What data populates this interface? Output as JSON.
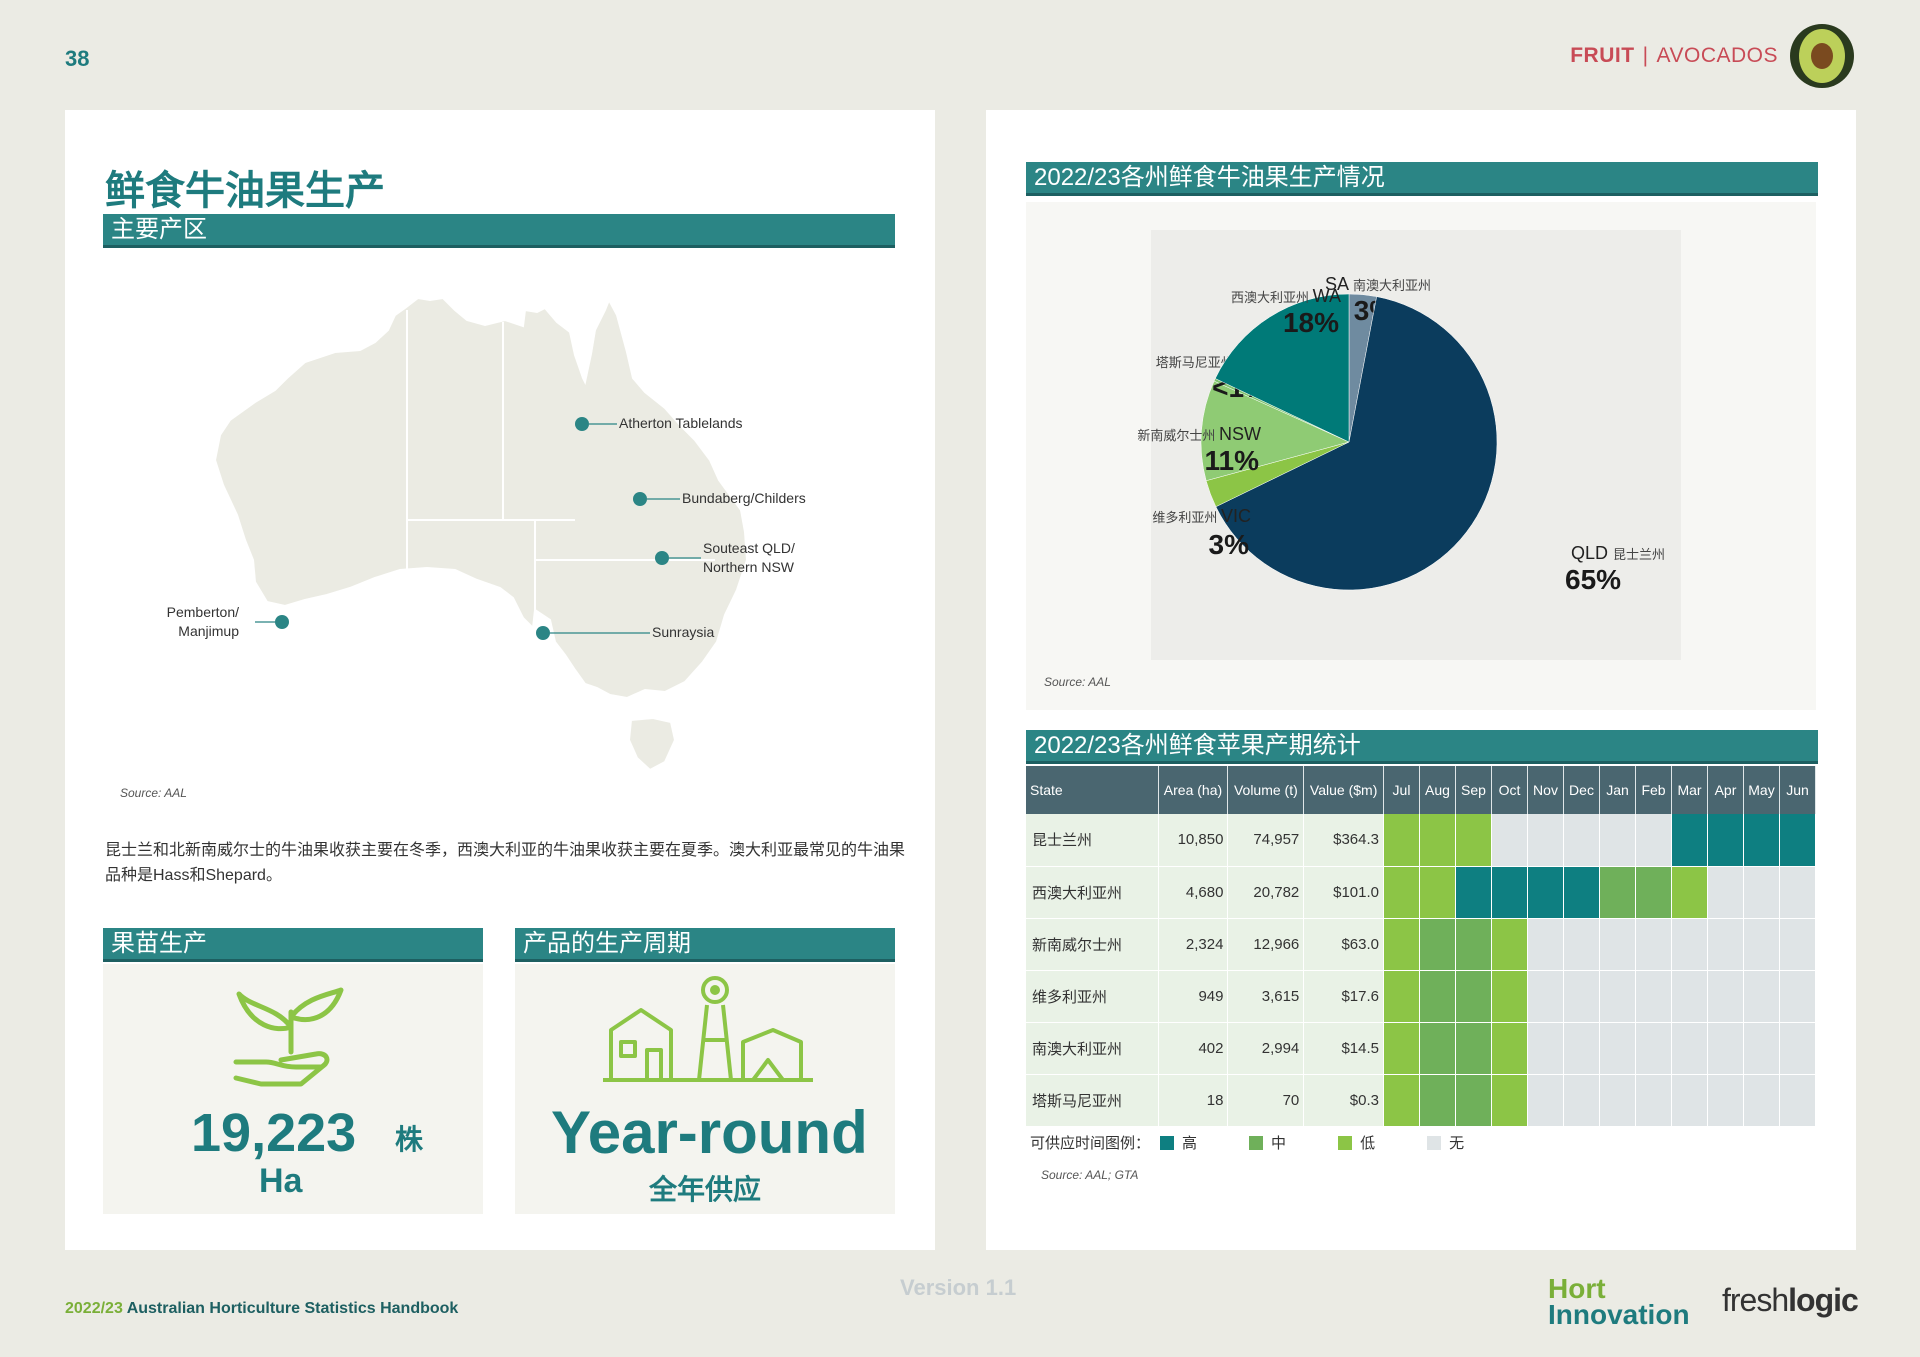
{
  "header": {
    "page_number": "38",
    "category": "FRUIT",
    "separator": "|",
    "subcategory": "AVOCADOS"
  },
  "left": {
    "title": "鲜食牛油果生产",
    "section_bar": "主要产区",
    "map_labels": {
      "atherton": "Atherton Tablelands",
      "bundaberg": "Bundaberg/Childers",
      "seqld_1": "Souteast QLD/",
      "seqld_2": "Northern NSW",
      "pemberton_1": "Pemberton/",
      "pemberton_2": "Manjimup",
      "sunraysia": "Sunraysia"
    },
    "map_source": "Source: AAL",
    "paragraph": "昆士兰和北新南威尔士的牛油果收获主要在冬季，西澳大利亚的牛油果收获主要在夏季。澳大利亚最常见的牛油果品种是Hass和Shepard。",
    "nursery": {
      "bar": "果苗生产",
      "value": "19,223",
      "unit": "株",
      "unit2": "Ha"
    },
    "cycle": {
      "bar": "产品的生产周期",
      "value": "Year-round",
      "sub": "全年供应"
    }
  },
  "right": {
    "pie_title": "2022/23各州鲜食牛油果生产情况",
    "pie_source": "Source: AAL",
    "chart_data": {
      "type": "pie",
      "title": "2022/23各州鲜食牛油果生产情况",
      "slices": [
        {
          "code": "QLD",
          "name_cn": "昆士兰州",
          "label": "65%",
          "value": 65,
          "color": "#0b3c5d"
        },
        {
          "code": "VIC",
          "name_cn": "维多利亚州",
          "label": "3%",
          "value": 3,
          "color": "#8cc546"
        },
        {
          "code": "NSW",
          "name_cn": "新南威尔士州",
          "label": "11%",
          "value": 11,
          "color": "#8fcb74"
        },
        {
          "code": "TAS",
          "name_cn": "塔斯马尼亚州",
          "label": "<1%",
          "value": 0.3,
          "color": "#7fc36e"
        },
        {
          "code": "WA",
          "name_cn": "西澳大利亚州",
          "label": "18%",
          "value": 18,
          "color": "#007a78"
        },
        {
          "code": "SA",
          "name_cn": "南澳大利亚州",
          "label": "3%",
          "value": 3,
          "color": "#6f8ba0"
        }
      ]
    },
    "table_title": "2022/23各州鲜食苹果产期统计",
    "table": {
      "headers": [
        "State",
        "Area (ha)",
        "Volume (t)",
        "Value ($m)",
        "Jul",
        "Aug",
        "Sep",
        "Oct",
        "Nov",
        "Dec",
        "Jan",
        "Feb",
        "Mar",
        "Apr",
        "May",
        "Jun"
      ],
      "rows": [
        {
          "state": "昆士兰州",
          "area": "10,850",
          "volume": "74,957",
          "value": "$364.3",
          "months": [
            "low",
            "low",
            "low",
            "none",
            "none",
            "none",
            "none",
            "none",
            "high",
            "high",
            "high",
            "high"
          ]
        },
        {
          "state": "西澳大利亚州",
          "area": "4,680",
          "volume": "20,782",
          "value": "$101.0",
          "months": [
            "low",
            "low",
            "high",
            "high",
            "high",
            "high",
            "med",
            "med",
            "low",
            "none",
            "none",
            "none"
          ]
        },
        {
          "state": "新南威尔士州",
          "area": "2,324",
          "volume": "12,966",
          "value": "$63.0",
          "months": [
            "low",
            "med",
            "med",
            "low",
            "none",
            "none",
            "none",
            "none",
            "none",
            "none",
            "none",
            "none"
          ]
        },
        {
          "state": "维多利亚州",
          "area": "949",
          "volume": "3,615",
          "value": "$17.6",
          "months": [
            "low",
            "med",
            "med",
            "low",
            "none",
            "none",
            "none",
            "none",
            "none",
            "none",
            "none",
            "none"
          ]
        },
        {
          "state": "南澳大利亚州",
          "area": "402",
          "volume": "2,994",
          "value": "$14.5",
          "months": [
            "low",
            "med",
            "med",
            "low",
            "none",
            "none",
            "none",
            "none",
            "none",
            "none",
            "none",
            "none"
          ]
        },
        {
          "state": "塔斯马尼亚州",
          "area": "18",
          "volume": "70",
          "value": "$0.3",
          "months": [
            "low",
            "med",
            "med",
            "low",
            "none",
            "none",
            "none",
            "none",
            "none",
            "none",
            "none",
            "none"
          ]
        }
      ]
    },
    "legend": {
      "label": "可供应时间图例",
      "colon": "：",
      "high": "高",
      "med": "中",
      "low": "低",
      "none": "无"
    },
    "table_source": "Source: AAL; GTA"
  },
  "footer": {
    "version": "Version 1.1",
    "year": "2022/23",
    "handbook": " Australian Horticulture Statistics Handbook",
    "hort": "Hort",
    "innovation": "Innovation",
    "fresh": "fresh",
    "logic": "logic"
  },
  "colors": {
    "teal": "#1e7b7e",
    "bar": "#2b8585",
    "red": "#c84b56",
    "green": "#7aaf38"
  }
}
